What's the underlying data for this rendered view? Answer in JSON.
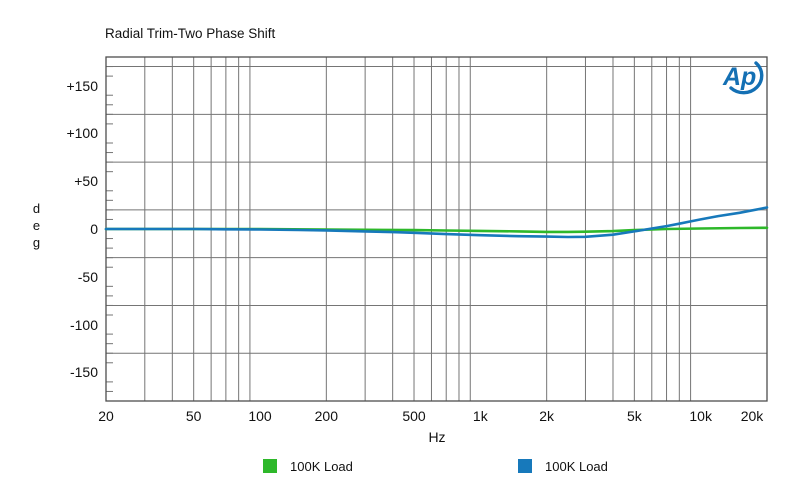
{
  "title": "Radial Trim-Two Phase Shift",
  "colors": {
    "background": "#ffffff",
    "grid": "#757575",
    "border": "#4d4d4d",
    "text": "#111111",
    "series_green": "#2eb82a",
    "series_blue": "#1779bb",
    "logo_blue": "#1470b4"
  },
  "chart_data": {
    "type": "line",
    "title": "Radial Trim-Two Phase Shift",
    "xlabel": "Hz",
    "ylabel": "deg",
    "x_scale": "log",
    "xlim": [
      20,
      20000
    ],
    "ylim": [
      -180,
      180
    ],
    "y_major_step": 50,
    "y_minor_step": 10,
    "grid": "on",
    "legend_position": "bottom",
    "logo_text": "Ap",
    "xticks": [
      {
        "f": 20,
        "label": "20"
      },
      {
        "f": 50,
        "label": "50"
      },
      {
        "f": 100,
        "label": "100"
      },
      {
        "f": 200,
        "label": "200"
      },
      {
        "f": 500,
        "label": "500"
      },
      {
        "f": 1000,
        "label": "1k"
      },
      {
        "f": 2000,
        "label": "2k"
      },
      {
        "f": 5000,
        "label": "5k"
      },
      {
        "f": 10000,
        "label": "10k"
      },
      {
        "f": 20000,
        "label": "20k"
      }
    ],
    "yticks": [
      {
        "v": 150,
        "label": "+150"
      },
      {
        "v": 100,
        "label": "+100"
      },
      {
        "v": 50,
        "label": "+50"
      },
      {
        "v": 0,
        "label": "0"
      },
      {
        "v": -50,
        "label": "-50"
      },
      {
        "v": -100,
        "label": "-100"
      },
      {
        "v": -150,
        "label": "-150"
      }
    ],
    "series": [
      {
        "name": "100K Load",
        "color": "#2eb82a",
        "points": [
          [
            20,
            0
          ],
          [
            50,
            0
          ],
          [
            100,
            0
          ],
          [
            200,
            -0.5
          ],
          [
            300,
            -0.8
          ],
          [
            500,
            -1.2
          ],
          [
            700,
            -1.6
          ],
          [
            1000,
            -2
          ],
          [
            1500,
            -2.5
          ],
          [
            2000,
            -3
          ],
          [
            2500,
            -3
          ],
          [
            3000,
            -2.8
          ],
          [
            4000,
            -2.2
          ],
          [
            5000,
            -1.2
          ],
          [
            6000,
            -0.5
          ],
          [
            7000,
            0
          ],
          [
            10000,
            0.5
          ],
          [
            15000,
            1
          ],
          [
            20000,
            1.3
          ]
        ]
      },
      {
        "name": "100K Load",
        "color": "#1779bb",
        "points": [
          [
            20,
            0
          ],
          [
            30,
            0
          ],
          [
            50,
            0
          ],
          [
            70,
            -0.3
          ],
          [
            100,
            -0.5
          ],
          [
            150,
            -1
          ],
          [
            200,
            -1.5
          ],
          [
            300,
            -2.5
          ],
          [
            400,
            -3.2
          ],
          [
            500,
            -4
          ],
          [
            700,
            -5.3
          ],
          [
            1000,
            -6.5
          ],
          [
            1500,
            -7.5
          ],
          [
            2000,
            -8
          ],
          [
            2500,
            -8.4
          ],
          [
            3000,
            -8.2
          ],
          [
            4000,
            -6
          ],
          [
            5000,
            -2.5
          ],
          [
            6000,
            0.5
          ],
          [
            7000,
            3
          ],
          [
            8000,
            5.5
          ],
          [
            9000,
            8
          ],
          [
            10000,
            10
          ],
          [
            12000,
            13.5
          ],
          [
            15000,
            17
          ],
          [
            20000,
            22.5
          ]
        ]
      }
    ]
  }
}
